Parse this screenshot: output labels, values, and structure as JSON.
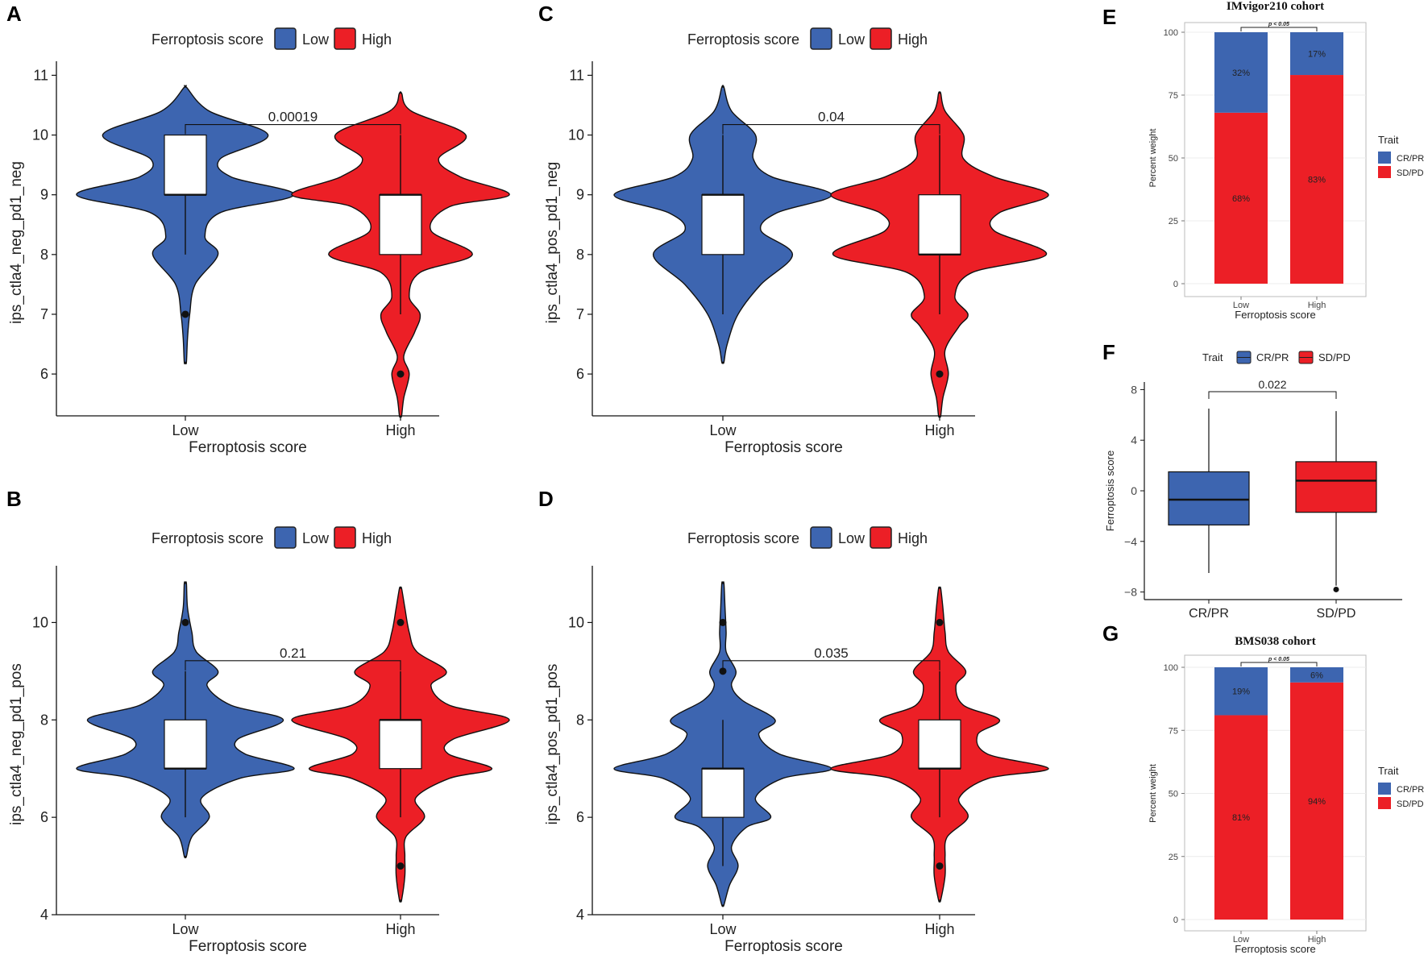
{
  "figure": {
    "colors": {
      "low": "#3d65b0",
      "high": "#ec1f26",
      "box_fill": "#ffffff",
      "line": "#111111"
    }
  },
  "chart_data": [
    {
      "id": "A",
      "type": "violin",
      "panel_label": "A",
      "legend_title": "Ferroptosis score",
      "legend_labels": [
        "Low",
        "High"
      ],
      "xlabel": "Ferroptosis score",
      "ylabel": "ips_ctla4_neg_pd1_neg",
      "categories": [
        "Low",
        "High"
      ],
      "ylim": [
        5.3,
        11.1
      ],
      "yticks": [
        6,
        7,
        8,
        9,
        10,
        11
      ],
      "pvalue": "0.00019",
      "groups": [
        {
          "name": "Low",
          "box": {
            "q1": 9,
            "median": 9,
            "q3": 10,
            "lower": 8,
            "upper": 10
          },
          "outliers": [
            7
          ],
          "density": [
            [
              6.2,
              0.01
            ],
            [
              6.6,
              0.02
            ],
            [
              7.0,
              0.04
            ],
            [
              7.5,
              0.09
            ],
            [
              8.0,
              0.3
            ],
            [
              8.3,
              0.18
            ],
            [
              8.7,
              0.32
            ],
            [
              9.0,
              1.0
            ],
            [
              9.3,
              0.42
            ],
            [
              9.6,
              0.32
            ],
            [
              10.0,
              0.76
            ],
            [
              10.4,
              0.22
            ],
            [
              10.8,
              0.01
            ]
          ]
        },
        {
          "name": "High",
          "box": {
            "q1": 8,
            "median": 9,
            "q3": 9,
            "lower": 7,
            "upper": 10
          },
          "outliers": [
            6
          ],
          "density": [
            [
              5.3,
              0.01
            ],
            [
              5.6,
              0.03
            ],
            [
              6.0,
              0.08
            ],
            [
              6.3,
              0.03
            ],
            [
              6.7,
              0.13
            ],
            [
              7.0,
              0.18
            ],
            [
              7.3,
              0.08
            ],
            [
              7.7,
              0.18
            ],
            [
              8.0,
              0.66
            ],
            [
              8.4,
              0.28
            ],
            [
              8.8,
              0.45
            ],
            [
              9.0,
              1.0
            ],
            [
              9.3,
              0.55
            ],
            [
              9.6,
              0.35
            ],
            [
              10.0,
              0.6
            ],
            [
              10.4,
              0.1
            ],
            [
              10.7,
              0.01
            ]
          ]
        }
      ]
    },
    {
      "id": "C",
      "type": "violin",
      "panel_label": "C",
      "legend_title": "Ferroptosis score",
      "legend_labels": [
        "Low",
        "High"
      ],
      "xlabel": "Ferroptosis score",
      "ylabel": "ips_ctla4_pos_pd1_neg",
      "categories": [
        "Low",
        "High"
      ],
      "ylim": [
        5.3,
        11.1
      ],
      "yticks": [
        6,
        7,
        8,
        9,
        10,
        11
      ],
      "pvalue": "0.04",
      "groups": [
        {
          "name": "Low",
          "box": {
            "q1": 8,
            "median": 9,
            "q3": 9,
            "lower": 7,
            "upper": 10
          },
          "outliers": [],
          "density": [
            [
              6.2,
              0.01
            ],
            [
              6.5,
              0.04
            ],
            [
              7.0,
              0.14
            ],
            [
              7.5,
              0.35
            ],
            [
              8.0,
              0.64
            ],
            [
              8.4,
              0.35
            ],
            [
              8.7,
              0.5
            ],
            [
              9.0,
              1.0
            ],
            [
              9.3,
              0.45
            ],
            [
              9.6,
              0.28
            ],
            [
              10.0,
              0.3
            ],
            [
              10.4,
              0.08
            ],
            [
              10.8,
              0.01
            ]
          ]
        },
        {
          "name": "High",
          "box": {
            "q1": 8,
            "median": 8,
            "q3": 9,
            "lower": 7,
            "upper": 10
          },
          "outliers": [
            6
          ],
          "density": [
            [
              5.3,
              0.01
            ],
            [
              5.6,
              0.03
            ],
            [
              6.0,
              0.08
            ],
            [
              6.4,
              0.05
            ],
            [
              6.8,
              0.18
            ],
            [
              7.0,
              0.26
            ],
            [
              7.3,
              0.14
            ],
            [
              7.7,
              0.3
            ],
            [
              8.0,
              0.98
            ],
            [
              8.4,
              0.5
            ],
            [
              8.7,
              0.55
            ],
            [
              9.0,
              1.0
            ],
            [
              9.3,
              0.5
            ],
            [
              9.6,
              0.22
            ],
            [
              10.0,
              0.22
            ],
            [
              10.4,
              0.05
            ],
            [
              10.7,
              0.01
            ]
          ]
        }
      ]
    },
    {
      "id": "B",
      "type": "violin",
      "panel_label": "B",
      "legend_title": "Ferroptosis score",
      "legend_labels": [
        "Low",
        "High"
      ],
      "xlabel": "Ferroptosis score",
      "ylabel": "ips_ctla4_neg_pd1_pos",
      "categories": [
        "Low",
        "High"
      ],
      "ylim": [
        4,
        11
      ],
      "yticks": [
        4,
        6,
        8,
        10
      ],
      "pvalue": "0.21",
      "groups": [
        {
          "name": "Low",
          "box": {
            "q1": 7,
            "median": 7,
            "q3": 8,
            "lower": 6,
            "upper": 9
          },
          "outliers": [
            10
          ],
          "density": [
            [
              5.2,
              0.01
            ],
            [
              5.6,
              0.06
            ],
            [
              6.0,
              0.22
            ],
            [
              6.4,
              0.15
            ],
            [
              6.8,
              0.5
            ],
            [
              7.0,
              1.0
            ],
            [
              7.3,
              0.55
            ],
            [
              7.6,
              0.48
            ],
            [
              8.0,
              0.9
            ],
            [
              8.3,
              0.42
            ],
            [
              8.7,
              0.2
            ],
            [
              9.0,
              0.3
            ],
            [
              9.4,
              0.1
            ],
            [
              9.8,
              0.06
            ],
            [
              10.3,
              0.02
            ],
            [
              10.8,
              0.01
            ]
          ]
        },
        {
          "name": "High",
          "box": {
            "q1": 7,
            "median": 8,
            "q3": 8,
            "lower": 6,
            "upper": 9
          },
          "outliers": [
            10,
            5
          ],
          "density": [
            [
              4.3,
              0.01
            ],
            [
              4.8,
              0.04
            ],
            [
              5.2,
              0.04
            ],
            [
              5.6,
              0.05
            ],
            [
              6.0,
              0.22
            ],
            [
              6.4,
              0.14
            ],
            [
              6.8,
              0.45
            ],
            [
              7.0,
              0.84
            ],
            [
              7.3,
              0.44
            ],
            [
              7.6,
              0.48
            ],
            [
              8.0,
              1.0
            ],
            [
              8.3,
              0.45
            ],
            [
              8.7,
              0.28
            ],
            [
              9.0,
              0.42
            ],
            [
              9.4,
              0.15
            ],
            [
              9.8,
              0.08
            ],
            [
              10.3,
              0.04
            ],
            [
              10.7,
              0.01
            ]
          ]
        }
      ]
    },
    {
      "id": "D",
      "type": "violin",
      "panel_label": "D",
      "legend_title": "Ferroptosis score",
      "legend_labels": [
        "Low",
        "High"
      ],
      "xlabel": "Ferroptosis score",
      "ylabel": "ips_ctla4_pos_pd1_pos",
      "categories": [
        "Low",
        "High"
      ],
      "ylim": [
        4,
        11
      ],
      "yticks": [
        4,
        6,
        8,
        10
      ],
      "pvalue": "0.035",
      "groups": [
        {
          "name": "Low",
          "box": {
            "q1": 6,
            "median": 7,
            "q3": 7,
            "lower": 5,
            "upper": 8
          },
          "outliers": [
            10,
            9
          ],
          "density": [
            [
              4.2,
              0.01
            ],
            [
              4.6,
              0.06
            ],
            [
              5.0,
              0.14
            ],
            [
              5.4,
              0.08
            ],
            [
              5.8,
              0.22
            ],
            [
              6.0,
              0.44
            ],
            [
              6.4,
              0.3
            ],
            [
              6.8,
              0.55
            ],
            [
              7.0,
              1.0
            ],
            [
              7.3,
              0.52
            ],
            [
              7.7,
              0.33
            ],
            [
              8.0,
              0.48
            ],
            [
              8.4,
              0.18
            ],
            [
              8.7,
              0.08
            ],
            [
              9.0,
              0.12
            ],
            [
              9.4,
              0.03
            ],
            [
              9.8,
              0.03
            ],
            [
              10.3,
              0.02
            ],
            [
              10.8,
              0.01
            ]
          ]
        },
        {
          "name": "High",
          "box": {
            "q1": 7,
            "median": 7,
            "q3": 8,
            "lower": 6,
            "upper": 9
          },
          "outliers": [
            10,
            5
          ],
          "density": [
            [
              4.3,
              0.01
            ],
            [
              4.8,
              0.05
            ],
            [
              5.2,
              0.05
            ],
            [
              5.6,
              0.07
            ],
            [
              6.0,
              0.26
            ],
            [
              6.4,
              0.18
            ],
            [
              6.8,
              0.45
            ],
            [
              7.0,
              1.0
            ],
            [
              7.3,
              0.44
            ],
            [
              7.7,
              0.35
            ],
            [
              8.0,
              0.55
            ],
            [
              8.3,
              0.22
            ],
            [
              8.7,
              0.15
            ],
            [
              9.0,
              0.24
            ],
            [
              9.4,
              0.08
            ],
            [
              9.8,
              0.05
            ],
            [
              10.3,
              0.03
            ],
            [
              10.7,
              0.01
            ]
          ]
        }
      ]
    },
    {
      "id": "E",
      "type": "stacked_bar",
      "panel_label": "E",
      "title": "IMvigor210 cohort",
      "xlabel": "Ferroptosis score",
      "ylabel": "Percent weight",
      "categories": [
        "Low",
        "High"
      ],
      "ylim": [
        0,
        100
      ],
      "yticks": [
        0,
        25,
        50,
        75,
        100
      ],
      "significance": "p < 0.05",
      "legend_title": "Trait",
      "series": [
        {
          "name": "SD/PD",
          "values": [
            68,
            83
          ],
          "labels": [
            "68%",
            "83%"
          ]
        },
        {
          "name": "CR/PR",
          "values": [
            32,
            17
          ],
          "labels": [
            "32%",
            "17%"
          ]
        }
      ]
    },
    {
      "id": "F",
      "type": "boxplot",
      "panel_label": "F",
      "legend_title": "Trait",
      "legend_labels": [
        "CR/PR",
        "SD/PD"
      ],
      "xlabel": "",
      "ylabel": "Ferroptosis score",
      "categories": [
        "CR/PR",
        "SD/PD"
      ],
      "ylim": [
        -8.6,
        8.6
      ],
      "yticks": [
        -8,
        -4,
        0,
        4,
        8
      ],
      "pvalue": "0.022",
      "groups": [
        {
          "name": "CR/PR",
          "box": {
            "q1": -2.7,
            "median": -0.7,
            "q3": 1.5,
            "lower": -6.5,
            "upper": 6.5
          },
          "outliers": []
        },
        {
          "name": "SD/PD",
          "box": {
            "q1": -1.7,
            "median": 0.8,
            "q3": 2.3,
            "lower": -7.5,
            "upper": 6.3
          },
          "outliers": [
            -7.8
          ]
        }
      ]
    },
    {
      "id": "G",
      "type": "stacked_bar",
      "panel_label": "G",
      "title": "BMS038 cohort",
      "xlabel": "Ferroptosis score",
      "ylabel": "Percent weight",
      "categories": [
        "Low",
        "High"
      ],
      "ylim": [
        0,
        100
      ],
      "yticks": [
        0,
        25,
        50,
        75,
        100
      ],
      "significance": "p < 0.05",
      "legend_title": "Trait",
      "series": [
        {
          "name": "SD/PD",
          "values": [
            81,
            94
          ],
          "labels": [
            "81%",
            "94%"
          ]
        },
        {
          "name": "CR/PR",
          "values": [
            19,
            6
          ],
          "labels": [
            "19%",
            "6%"
          ]
        }
      ]
    }
  ]
}
